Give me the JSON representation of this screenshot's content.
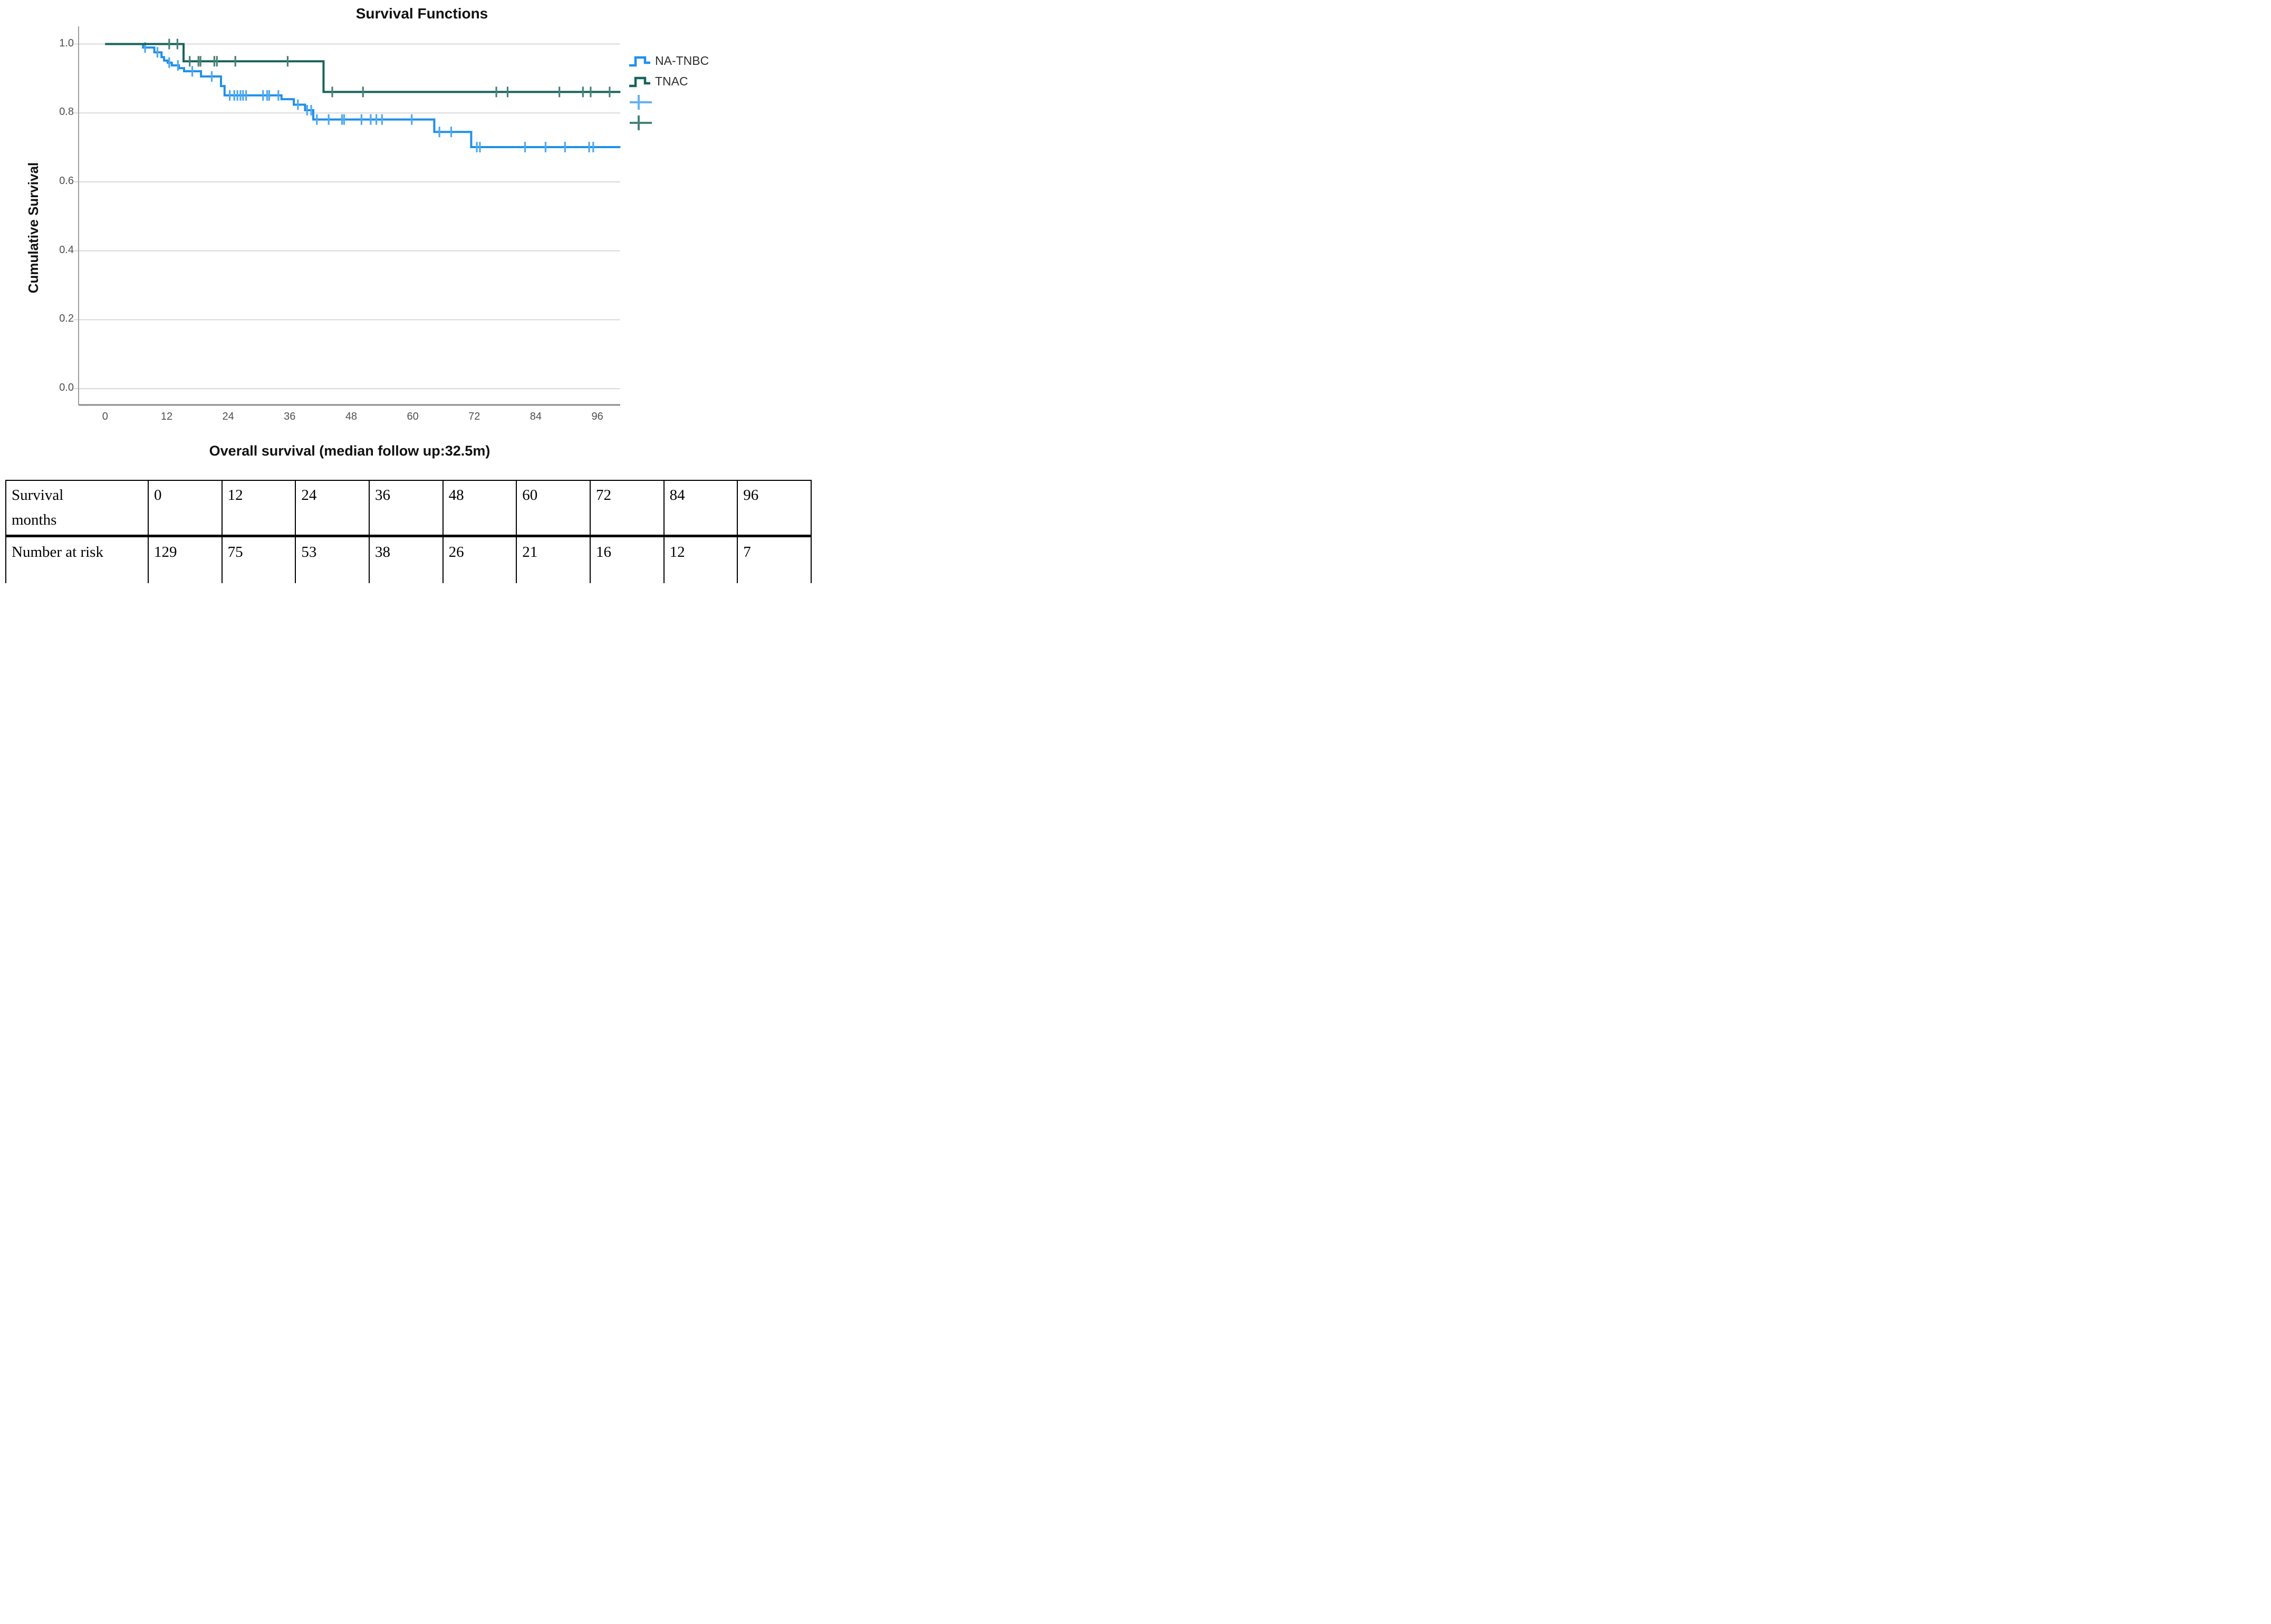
{
  "chart_data": {
    "type": "line",
    "subtype": "kaplan-meier-step",
    "title": "Survival Functions",
    "xlabel": "Overall survival (median follow up:32.5m)",
    "ylabel": "Cumulative Survival",
    "xticks": [
      0,
      12,
      24,
      36,
      48,
      60,
      72,
      84,
      96
    ],
    "yticks": [
      "0.0",
      "0.2",
      "0.4",
      "0.6",
      "0.8",
      "1.0"
    ],
    "xlim": [
      -5.2,
      100.6
    ],
    "ylim": [
      -0.05,
      1.02
    ],
    "grid": "horizontal",
    "legend_position": "right",
    "series": [
      {
        "name": "NA-TNBC",
        "color": "#2090E8",
        "censor_color": "#4FA8EF",
        "steps": [
          [
            0,
            1.0
          ],
          [
            7.4,
            0.99
          ],
          [
            9.6,
            0.976
          ],
          [
            11.0,
            0.962
          ],
          [
            11.5,
            0.952
          ],
          [
            12.2,
            0.946
          ],
          [
            13.0,
            0.938
          ],
          [
            14.4,
            0.93
          ],
          [
            15.4,
            0.921
          ],
          [
            18.7,
            0.906
          ],
          [
            22.6,
            0.878
          ],
          [
            23.3,
            0.851
          ],
          [
            34.4,
            0.84
          ],
          [
            36.8,
            0.824
          ],
          [
            39.0,
            0.808
          ],
          [
            40.6,
            0.781
          ],
          [
            64.2,
            0.745
          ],
          [
            71.4,
            0.701
          ]
        ],
        "end": 100.5,
        "censored": [
          [
            7.8,
            0.99
          ],
          [
            10.2,
            0.976
          ],
          [
            12.5,
            0.946
          ],
          [
            14.2,
            0.938
          ],
          [
            17.0,
            0.921
          ],
          [
            20.8,
            0.906
          ],
          [
            24.3,
            0.851
          ],
          [
            25.2,
            0.851
          ],
          [
            25.8,
            0.851
          ],
          [
            26.4,
            0.851
          ],
          [
            26.9,
            0.851
          ],
          [
            27.5,
            0.851
          ],
          [
            30.8,
            0.851
          ],
          [
            31.6,
            0.851
          ],
          [
            32.0,
            0.851
          ],
          [
            33.8,
            0.851
          ],
          [
            37.6,
            0.824
          ],
          [
            39.4,
            0.808
          ],
          [
            40.2,
            0.808
          ],
          [
            41.3,
            0.781
          ],
          [
            43.6,
            0.781
          ],
          [
            46.2,
            0.781
          ],
          [
            46.6,
            0.781
          ],
          [
            50.0,
            0.781
          ],
          [
            51.8,
            0.781
          ],
          [
            52.9,
            0.781
          ],
          [
            54.0,
            0.781
          ],
          [
            59.8,
            0.781
          ],
          [
            65.2,
            0.745
          ],
          [
            67.5,
            0.745
          ],
          [
            72.5,
            0.701
          ],
          [
            73.1,
            0.701
          ],
          [
            81.9,
            0.701
          ],
          [
            85.9,
            0.701
          ],
          [
            89.7,
            0.701
          ],
          [
            94.4,
            0.701
          ],
          [
            95.2,
            0.701
          ]
        ]
      },
      {
        "name": "TNAC",
        "color": "#17635A",
        "censor_color": "#47817A",
        "steps": [
          [
            0,
            1.0
          ],
          [
            15.3,
            0.95
          ],
          [
            42.6,
            0.861
          ]
        ],
        "end": 100.5,
        "censored": [
          [
            12.5,
            1.0
          ],
          [
            14.1,
            1.0
          ],
          [
            16.5,
            0.95
          ],
          [
            18.2,
            0.95
          ],
          [
            18.6,
            0.95
          ],
          [
            21.3,
            0.95
          ],
          [
            21.8,
            0.95
          ],
          [
            25.4,
            0.95
          ],
          [
            35.6,
            0.95
          ],
          [
            44.3,
            0.861
          ],
          [
            50.3,
            0.861
          ],
          [
            76.3,
            0.861
          ],
          [
            78.5,
            0.861
          ],
          [
            88.6,
            0.861
          ],
          [
            93.2,
            0.861
          ],
          [
            94.7,
            0.861
          ],
          [
            98.4,
            0.861
          ]
        ]
      }
    ]
  },
  "legend": {
    "items": [
      {
        "label": "NA-TNBC",
        "type": "step",
        "color": "#2090E8"
      },
      {
        "label": "TNAC",
        "type": "step",
        "color": "#17635A"
      },
      {
        "label": "",
        "type": "plus",
        "color": "#62B2F0"
      },
      {
        "label": "",
        "type": "plus",
        "color": "#47817A"
      }
    ]
  },
  "table": {
    "rows": [
      {
        "label": "Survival\nmonths",
        "values": [
          "0",
          "12",
          "24",
          "36",
          "48",
          "60",
          "72",
          "84",
          "96"
        ]
      },
      {
        "label": "Number at risk",
        "values": [
          "129",
          "75",
          "53",
          "38",
          "26",
          "21",
          "16",
          "12",
          "7"
        ]
      }
    ]
  },
  "style_colors": {
    "gridline": "#D9D9D9",
    "y_axis": "#9E9E9E",
    "x_axis": "#8A8A8A",
    "tick_text": "#4F4F4F",
    "title_text": "#111111"
  }
}
